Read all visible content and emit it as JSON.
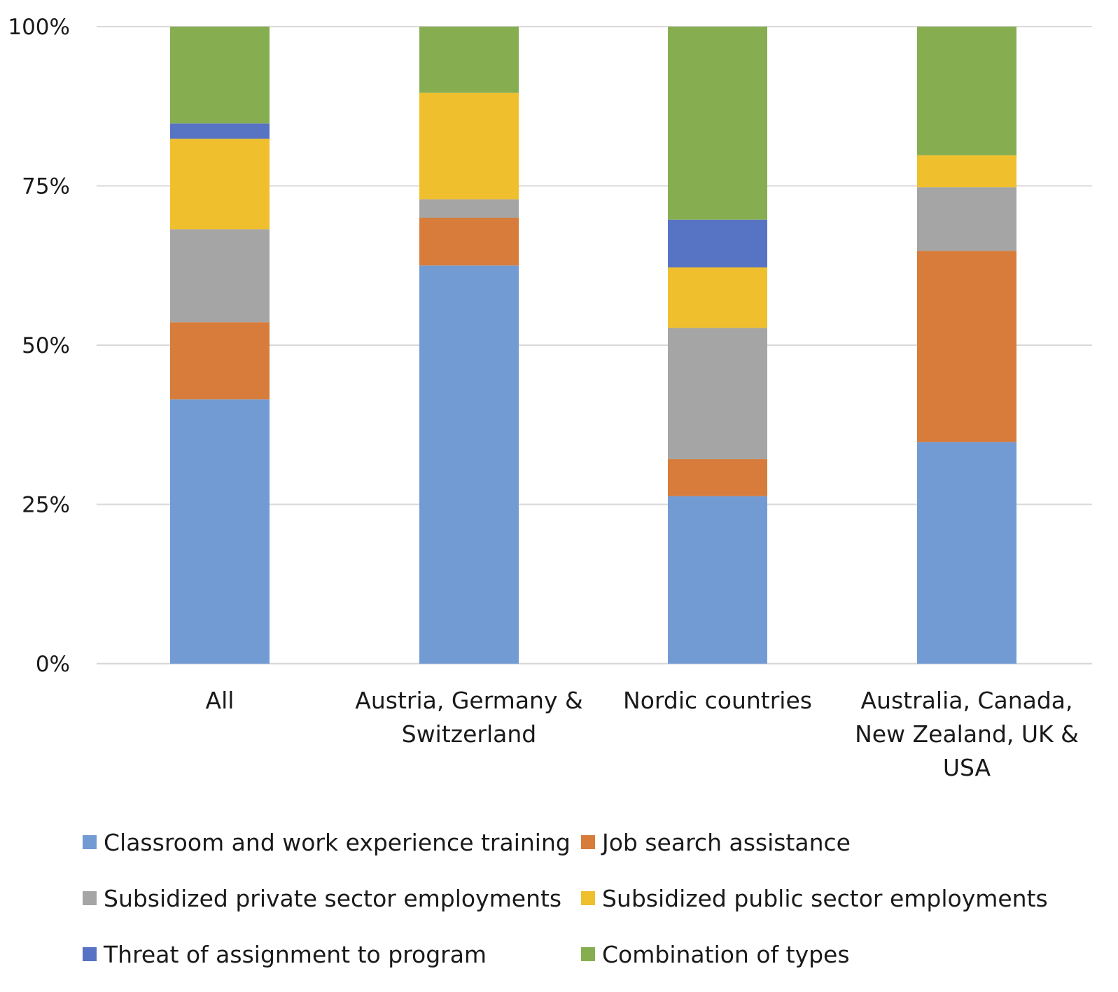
{
  "chart_data": {
    "type": "bar",
    "stacked": true,
    "normalized": true,
    "title": "",
    "xlabel": "",
    "ylabel": "",
    "ylim": [
      0,
      100
    ],
    "y_ticks": [
      "0%",
      "25%",
      "50%",
      "75%",
      "100%"
    ],
    "grid": true,
    "legend_position": "bottom",
    "categories": [
      [
        "All"
      ],
      [
        "Austria, Germany &",
        "Switzerland"
      ],
      [
        "Nordic countries"
      ],
      [
        "Australia, Canada,",
        "New Zealand, UK &",
        "USA"
      ]
    ],
    "series": [
      {
        "name": "Classroom and work experience training",
        "color": "#729bd3",
        "values": [
          41.5,
          62.5,
          26.3,
          34.8
        ]
      },
      {
        "name": "Job search assistance",
        "color": "#d77c3a",
        "values": [
          12.1,
          7.5,
          5.8,
          30.0
        ]
      },
      {
        "name": "Subsidized private sector employments",
        "color": "#a5a5a5",
        "values": [
          14.6,
          2.9,
          20.6,
          10.0
        ]
      },
      {
        "name": "Subsidized public sector employments",
        "color": "#f0bf2e",
        "values": [
          14.2,
          16.7,
          9.5,
          5.0
        ]
      },
      {
        "name": "Threat of assignment to program",
        "color": "#5773c3",
        "values": [
          2.4,
          0.0,
          7.5,
          0.0
        ]
      },
      {
        "name": "Combination of types",
        "color": "#86ae51",
        "values": [
          15.2,
          10.4,
          30.3,
          20.2
        ]
      }
    ]
  }
}
